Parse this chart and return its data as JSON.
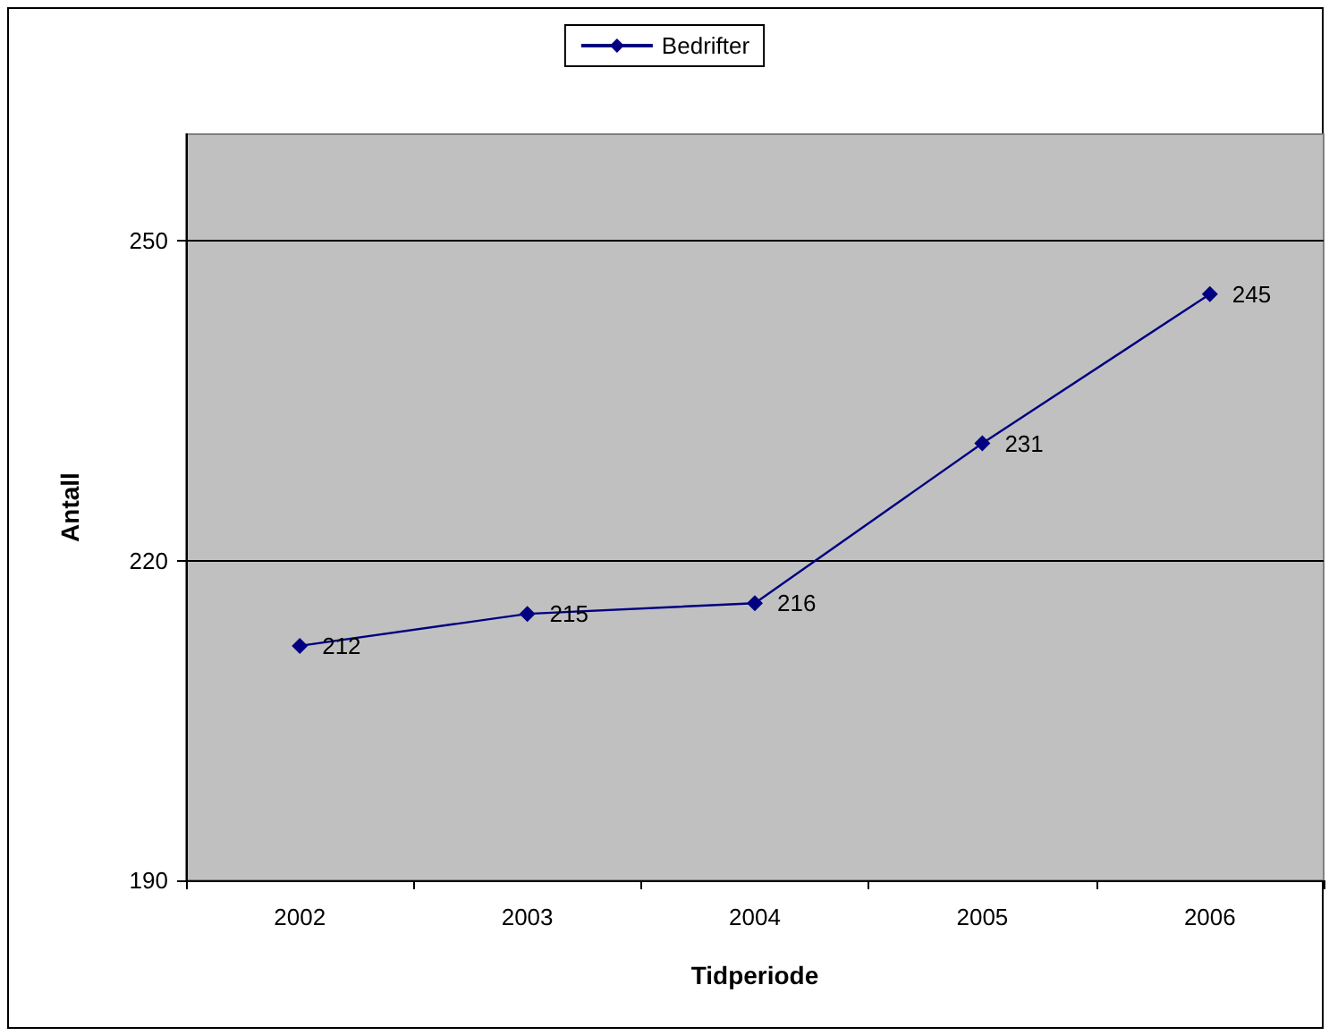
{
  "chart_data": {
    "type": "line",
    "xlabel": "Tidperiode",
    "ylabel": "Antall",
    "categories": [
      "2002",
      "2003",
      "2004",
      "2005",
      "2006"
    ],
    "series": [
      {
        "name": "Bedrifter",
        "color": "#000080",
        "values": [
          212,
          215,
          216,
          231,
          245
        ]
      }
    ],
    "ylim": [
      190,
      260
    ],
    "yticks": [
      190,
      220,
      250
    ],
    "grid": "y",
    "legend": "top",
    "marker": "diamond",
    "line_style": "solid",
    "data_labels": true
  }
}
